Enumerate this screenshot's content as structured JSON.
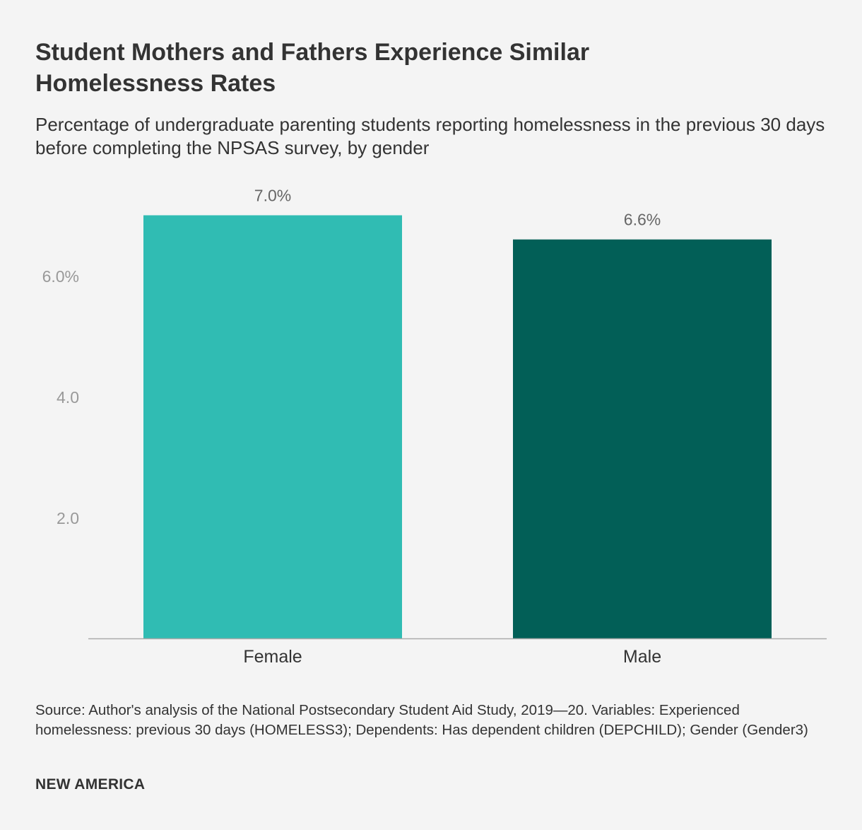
{
  "chart_data": {
    "type": "bar",
    "title": "Student Mothers and Fathers Experience Similar Homelessness Rates",
    "subtitle": "Percentage of undergraduate parenting students reporting homelessness in the previous 30 days before completing the NPSAS survey, by gender",
    "categories": [
      "Female",
      "Male"
    ],
    "values": [
      7.0,
      6.6
    ],
    "value_labels": [
      "7.0%",
      "6.6%"
    ],
    "bar_colors": [
      "#30bcb3",
      "#025f57"
    ],
    "ylim": [
      0,
      7.0
    ],
    "yticks": [
      {
        "value": 2,
        "label": "2.0"
      },
      {
        "value": 4,
        "label": "4.0"
      },
      {
        "value": 6,
        "label": "6.0%"
      }
    ],
    "grid": false,
    "legend": "none"
  },
  "source": "Source: Author's analysis of the National Postsecondary Student Aid Study, 2019—20. Variables: Experienced homelessness: previous 30 days (HOMELESS3); Dependents: Has dependent children (DEPCHILD); Gender (Gender3)",
  "brand": "NEW AMERICA",
  "colors": {
    "background": "#f4f4f4",
    "text": "#333333",
    "tick_text": "#999999",
    "value_label_text": "#666666",
    "baseline": "#aaaaaa"
  }
}
